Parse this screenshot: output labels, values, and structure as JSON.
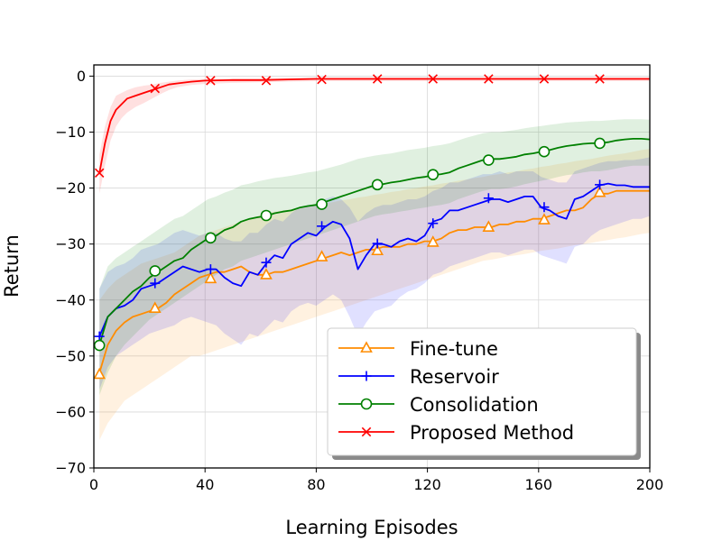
{
  "chart_data": {
    "type": "line",
    "title": "",
    "xlabel": "Learning Episodes",
    "ylabel": "Return",
    "xlim": [
      0,
      200
    ],
    "ylim": [
      -70,
      2
    ],
    "xticks": [
      0,
      40,
      80,
      120,
      160,
      200
    ],
    "yticks": [
      0,
      -10,
      -20,
      -30,
      -40,
      -50,
      -60,
      -70
    ],
    "grid": true,
    "legend_position": "lower-right",
    "series": [
      {
        "name": "Fine-tune",
        "color": "#ff8c00",
        "marker": "triangle",
        "x": [
          2,
          5,
          8,
          11,
          14,
          17,
          20,
          23,
          26,
          29,
          32,
          35,
          38,
          41,
          44,
          47,
          50,
          53,
          56,
          59,
          62,
          65,
          68,
          71,
          74,
          77,
          80,
          83,
          86,
          89,
          92,
          95,
          98,
          101,
          104,
          107,
          110,
          113,
          116,
          119,
          122,
          125,
          128,
          131,
          134,
          137,
          140,
          143,
          146,
          149,
          152,
          155,
          158,
          161,
          164,
          167,
          170,
          173,
          176,
          179,
          182,
          185,
          188,
          191,
          194,
          197,
          200
        ],
        "y": [
          -53,
          -48,
          -45.5,
          -44,
          -43,
          -42.5,
          -42,
          -41.5,
          -40.5,
          -39,
          -38,
          -37,
          -36,
          -35.5,
          -35,
          -35,
          -34.5,
          -34,
          -35,
          -35.5,
          -35.5,
          -35,
          -35,
          -34.5,
          -34,
          -33.5,
          -33,
          -32.5,
          -32,
          -31.5,
          -32,
          -31.5,
          -31,
          -31,
          -30.5,
          -30.5,
          -30.5,
          -30,
          -30,
          -29.5,
          -29.5,
          -29,
          -28,
          -27.5,
          -27.5,
          -27,
          -27,
          -27,
          -26.5,
          -26.5,
          -26,
          -26,
          -25.5,
          -25.5,
          -25,
          -24.5,
          -24,
          -24,
          -23.5,
          -22,
          -21,
          -21,
          -20.5,
          -20.5,
          -20.5,
          -20.5,
          -20.5
        ],
        "lower": [
          -65,
          -62,
          -60,
          -58,
          -57,
          -56,
          -55,
          -54,
          -53,
          -52,
          -51,
          -50,
          -50,
          -49.5,
          -49,
          -48.5,
          -48,
          -47.5,
          -47,
          -46.5,
          -46,
          -45.5,
          -45,
          -44.5,
          -44,
          -43.5,
          -43,
          -42.5,
          -42,
          -41.5,
          -41,
          -40.5,
          -40,
          -39.5,
          -39,
          -38.5,
          -38,
          -37.5,
          -37,
          -36.5,
          -36,
          -35.5,
          -35,
          -34.5,
          -34,
          -33.5,
          -33,
          -32.8,
          -32.5,
          -32.2,
          -32,
          -31.8,
          -31.5,
          -31.2,
          -31,
          -30.8,
          -30.5,
          -30.2,
          -30,
          -29.8,
          -29.5,
          -29.3,
          -29,
          -28.8,
          -28.5,
          -28.2,
          -28
        ],
        "upper": [
          -40,
          -38,
          -36.5,
          -35.5,
          -34.5,
          -33.5,
          -33,
          -32.5,
          -32,
          -31.5,
          -30.5,
          -29.5,
          -28.5,
          -28,
          -27.5,
          -27,
          -26.5,
          -26,
          -25.5,
          -25,
          -24.5,
          -24.2,
          -24,
          -23.8,
          -23.5,
          -23.2,
          -23,
          -22.8,
          -22.5,
          -22.2,
          -22,
          -21.7,
          -21.5,
          -21.2,
          -21,
          -20.7,
          -20.5,
          -20.2,
          -20,
          -19.7,
          -19.5,
          -19.2,
          -19,
          -18.7,
          -18.5,
          -18.2,
          -18,
          -17.7,
          -17.5,
          -17.2,
          -17,
          -16.7,
          -16.5,
          -16.2,
          -16,
          -15.7,
          -15.5,
          -15.2,
          -15,
          -14.8,
          -14.5,
          -14.2,
          -14,
          -13.8,
          -13.5,
          -13.2,
          -13
        ],
        "marker_x": [
          2,
          22,
          42,
          62,
          82,
          102,
          122,
          142,
          162,
          182
        ],
        "marker_y": [
          -53.3,
          -41.5,
          -36.2,
          -35.5,
          -32.3,
          -31.2,
          -29.7,
          -27,
          -25.7,
          -20.8
        ]
      },
      {
        "name": "Reservoir",
        "color": "#0000ff",
        "marker": "plus",
        "x": [
          2,
          5,
          8,
          11,
          14,
          17,
          20,
          23,
          26,
          29,
          32,
          35,
          38,
          41,
          44,
          47,
          50,
          53,
          56,
          59,
          62,
          65,
          68,
          71,
          74,
          77,
          80,
          83,
          86,
          89,
          92,
          95,
          98,
          101,
          104,
          107,
          110,
          113,
          116,
          119,
          122,
          125,
          128,
          131,
          134,
          137,
          140,
          143,
          146,
          149,
          152,
          155,
          158,
          161,
          164,
          167,
          170,
          173,
          176,
          179,
          182,
          185,
          188,
          191,
          194,
          197,
          200
        ],
        "y": [
          -46.5,
          -43,
          -41.5,
          -41,
          -40,
          -38,
          -37.5,
          -37,
          -36,
          -35,
          -34,
          -34.5,
          -35,
          -34.5,
          -34.5,
          -36,
          -37,
          -37.5,
          -35,
          -35.5,
          -33.5,
          -32,
          -32.5,
          -30,
          -29,
          -28,
          -28.5,
          -27,
          -26,
          -26.5,
          -29,
          -34.5,
          -32,
          -30,
          -30,
          -30.5,
          -29.5,
          -29,
          -29.5,
          -28.5,
          -26,
          -25.5,
          -24,
          -24,
          -23.5,
          -23,
          -22.5,
          -22,
          -22,
          -22.5,
          -22,
          -21.5,
          -21.5,
          -23.5,
          -24,
          -25,
          -25.5,
          -22,
          -21.5,
          -20.5,
          -19.5,
          -19.2,
          -19.5,
          -19.5,
          -19.8,
          -19.8,
          -19.8
        ],
        "lower": [
          -56,
          -52,
          -50,
          -49,
          -48,
          -47,
          -46,
          -45.5,
          -45,
          -44.5,
          -43.5,
          -43,
          -43.5,
          -44,
          -44.5,
          -46,
          -47,
          -48,
          -46,
          -46.5,
          -45,
          -43.5,
          -44,
          -42,
          -41,
          -40.5,
          -41,
          -40,
          -39,
          -40,
          -43,
          -46.5,
          -44,
          -42,
          -41.5,
          -41,
          -39.5,
          -38.5,
          -38,
          -37,
          -35.5,
          -35,
          -34,
          -33.5,
          -33,
          -32.5,
          -32,
          -31.5,
          -31.5,
          -32,
          -31.5,
          -31,
          -31,
          -32,
          -32.5,
          -33,
          -33.5,
          -30.5,
          -30,
          -28.5,
          -27.5,
          -27,
          -26.5,
          -26,
          -25.5,
          -25.5,
          -25
        ],
        "upper": [
          -38,
          -35,
          -34,
          -33.5,
          -32.5,
          -31,
          -30.5,
          -30,
          -29,
          -28,
          -27.5,
          -28,
          -28.5,
          -28,
          -28,
          -29,
          -29.5,
          -29.5,
          -28,
          -28,
          -26.5,
          -25.5,
          -26,
          -24.5,
          -23.5,
          -23,
          -23,
          -22,
          -21.5,
          -22,
          -23.5,
          -26,
          -24.5,
          -23.5,
          -23,
          -23,
          -22.5,
          -22,
          -22,
          -21.5,
          -20.5,
          -20,
          -19,
          -19,
          -18.5,
          -18,
          -17.5,
          -17.5,
          -17,
          -17.5,
          -17,
          -17,
          -17,
          -18,
          -18.5,
          -19,
          -19,
          -17,
          -16.5,
          -16,
          -15.5,
          -15.2,
          -15.2,
          -15,
          -15,
          -14.8,
          -14.5
        ],
        "marker_x": [
          2,
          22,
          42,
          62,
          82,
          102,
          122,
          142,
          162,
          182
        ],
        "marker_y": [
          -46.5,
          -37,
          -34.5,
          -33.3,
          -26.8,
          -29.9,
          -26.3,
          -21.8,
          -23.4,
          -19.4
        ]
      },
      {
        "name": "Consolidation",
        "color": "#008000",
        "marker": "circle",
        "x": [
          2,
          5,
          8,
          11,
          14,
          17,
          20,
          23,
          26,
          29,
          32,
          35,
          38,
          41,
          44,
          47,
          50,
          53,
          56,
          59,
          62,
          65,
          68,
          71,
          74,
          77,
          80,
          83,
          86,
          89,
          92,
          95,
          98,
          101,
          104,
          107,
          110,
          113,
          116,
          119,
          122,
          125,
          128,
          131,
          134,
          137,
          140,
          143,
          146,
          149,
          152,
          155,
          158,
          161,
          164,
          167,
          170,
          173,
          176,
          179,
          182,
          185,
          188,
          191,
          194,
          197,
          200
        ],
        "y": [
          -48,
          -43,
          -41.5,
          -40,
          -38.5,
          -37.5,
          -36,
          -35,
          -34,
          -33,
          -32.5,
          -31,
          -30,
          -29,
          -28.5,
          -27.5,
          -27,
          -26,
          -25.5,
          -25.2,
          -25,
          -24.5,
          -24.2,
          -24,
          -23.5,
          -23.2,
          -23,
          -22.5,
          -22,
          -21.5,
          -21,
          -20.5,
          -20,
          -19.5,
          -19.3,
          -19,
          -18.8,
          -18.5,
          -18.2,
          -18,
          -17.7,
          -17.5,
          -17.2,
          -16.5,
          -16,
          -15.5,
          -15,
          -14.8,
          -14.8,
          -14.6,
          -14.4,
          -14,
          -13.8,
          -13.5,
          -13.2,
          -12.8,
          -12.5,
          -12.3,
          -12.1,
          -12,
          -12,
          -11.8,
          -11.5,
          -11.3,
          -11.2,
          -11.2,
          -11.3
        ],
        "lower": [
          -57,
          -53,
          -50,
          -48,
          -46.5,
          -45,
          -43.5,
          -42.5,
          -41.5,
          -40.5,
          -39.5,
          -38.5,
          -37.5,
          -36.5,
          -35.5,
          -34.5,
          -34,
          -33,
          -32.5,
          -32,
          -31.5,
          -31,
          -30.5,
          -30,
          -29.5,
          -29,
          -28.5,
          -28,
          -27.5,
          -27,
          -26.5,
          -26,
          -25.5,
          -25,
          -24.7,
          -24.5,
          -24.2,
          -24,
          -23.7,
          -23.5,
          -23.2,
          -23,
          -22.7,
          -22,
          -21.5,
          -21,
          -20.5,
          -20.2,
          -20.2,
          -20,
          -19.7,
          -19.3,
          -19,
          -18.7,
          -18.4,
          -18,
          -17.7,
          -17.5,
          -17.2,
          -17,
          -17,
          -16.8,
          -16.5,
          -16.2,
          -16,
          -16,
          -16
        ],
        "upper": [
          -38,
          -34,
          -32.5,
          -31.5,
          -30.5,
          -29.5,
          -28.5,
          -27.5,
          -26.5,
          -25.5,
          -25,
          -24,
          -23,
          -22,
          -21.5,
          -20.8,
          -20.3,
          -19.5,
          -19.2,
          -18.8,
          -18.5,
          -18.2,
          -18,
          -17.8,
          -17.5,
          -17.2,
          -17,
          -16.6,
          -16.2,
          -15.8,
          -15.3,
          -14.8,
          -14.5,
          -14.2,
          -14,
          -13.8,
          -13.5,
          -13.2,
          -13,
          -12.8,
          -12.5,
          -12.3,
          -12,
          -11.5,
          -11,
          -10.6,
          -10.2,
          -10,
          -10,
          -9.8,
          -9.6,
          -9.3,
          -9.1,
          -8.9,
          -8.7,
          -8.5,
          -8.3,
          -8.2,
          -8.1,
          -8,
          -8,
          -7.9,
          -7.8,
          -7.7,
          -7.7,
          -7.7,
          -7.8
        ],
        "marker_x": [
          2,
          22,
          42,
          62,
          82,
          102,
          122,
          142,
          162,
          182
        ],
        "marker_y": [
          -48.1,
          -34.8,
          -28.9,
          -24.9,
          -22.9,
          -19.4,
          -17.6,
          -15,
          -13.5,
          -12
        ]
      },
      {
        "name": "Proposed Method",
        "color": "#ff0000",
        "marker": "x",
        "x": [
          2,
          4,
          6,
          8,
          10,
          12,
          15,
          18,
          21,
          24,
          27,
          30,
          35,
          40,
          50,
          60,
          70,
          80,
          90,
          100,
          110,
          120,
          130,
          140,
          150,
          160,
          170,
          180,
          190,
          200
        ],
        "y": [
          -17.3,
          -12,
          -8,
          -6,
          -5,
          -4,
          -3.5,
          -3,
          -2.5,
          -2,
          -1.5,
          -1.3,
          -1,
          -0.8,
          -0.7,
          -0.7,
          -0.6,
          -0.5,
          -0.5,
          -0.5,
          -0.5,
          -0.5,
          -0.5,
          -0.5,
          -0.5,
          -0.5,
          -0.5,
          -0.5,
          -0.5,
          -0.5
        ],
        "lower": [
          -21,
          -16,
          -11.5,
          -9,
          -7.5,
          -6.5,
          -5.5,
          -4.8,
          -4,
          -3.2,
          -2.5,
          -2,
          -1.6,
          -1.4,
          -1.2,
          -1.1,
          -1,
          -0.9,
          -0.9,
          -0.9,
          -0.9,
          -0.9,
          -0.9,
          -0.9,
          -0.9,
          -0.9,
          -0.9,
          -0.9,
          -0.9,
          -0.9
        ],
        "upper": [
          -14,
          -9,
          -5.5,
          -3.5,
          -3,
          -2.5,
          -2,
          -1.7,
          -1.5,
          -1.2,
          -1,
          -0.8,
          -0.6,
          -0.5,
          -0.4,
          -0.4,
          -0.3,
          -0.2,
          -0.2,
          -0.2,
          -0.2,
          -0.2,
          -0.2,
          -0.2,
          -0.2,
          -0.2,
          -0.2,
          -0.2,
          -0.2,
          -0.2
        ],
        "marker_x": [
          2,
          22,
          42,
          62,
          82,
          102,
          122,
          142,
          162,
          182
        ],
        "marker_y": [
          -17.3,
          -2.2,
          -0.8,
          -0.8,
          -0.6,
          -0.5,
          -0.5,
          -0.5,
          -0.5,
          -0.5
        ]
      }
    ]
  }
}
